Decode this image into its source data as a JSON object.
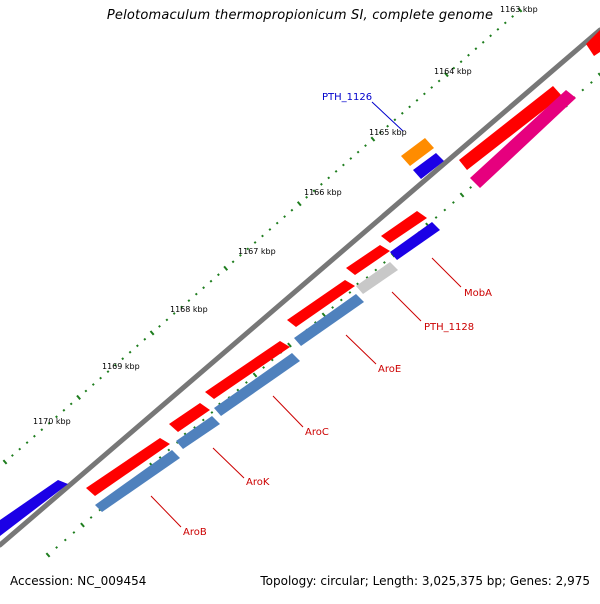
{
  "title": "Pelotomaculum thermopropionicum SI, complete genome",
  "footer": {
    "accession": "Accession: NC_009454",
    "info": "Topology: circular; Length: 3,025,375 bp; Genes: 2,975"
  },
  "colors": {
    "backbone": "#777777",
    "tick": "#1e7d1e",
    "forward_gene": "#ff0000",
    "reverse_gene": "#1b00e6",
    "operon_bar": "#4f81bd",
    "highlight_gene": "#ff8c00",
    "pink_gene": "#e6007e",
    "gray_gene": "#c8c8c8",
    "label_blue": "#0000cc",
    "label_red": "#cc0000"
  },
  "scale_labels": [
    "1163 kbp",
    "1164 kbp",
    "1165 kbp",
    "1166 kbp",
    "1167 kbp",
    "1168 kbp",
    "1169 kbp",
    "1170 kbp"
  ],
  "gene_labels": [
    {
      "text": "PTH_1126",
      "color": "blue"
    },
    {
      "text": "MobA",
      "color": "red"
    },
    {
      "text": "PTH_1128",
      "color": "red"
    },
    {
      "text": "AroE",
      "color": "red"
    },
    {
      "text": "AroC",
      "color": "red"
    },
    {
      "text": "AroK",
      "color": "red"
    },
    {
      "text": "AroB",
      "color": "red"
    }
  ]
}
